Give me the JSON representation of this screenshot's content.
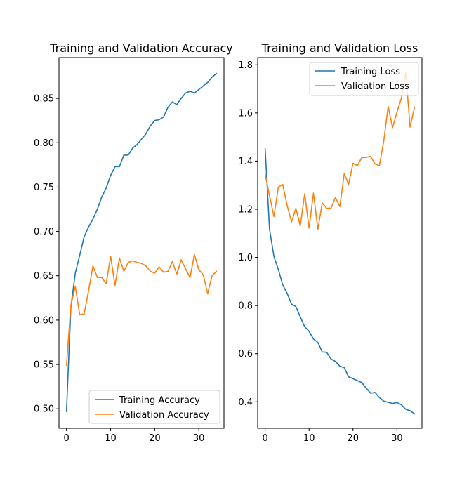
{
  "colors": {
    "training": "#1f77b4",
    "validation": "#ff7f0e"
  },
  "chart_data": [
    {
      "type": "line",
      "title": "Training and Validation Accuracy",
      "xlabel": "",
      "ylabel": "",
      "xlim": [
        -1.7,
        35.7
      ],
      "ylim": [
        0.478,
        0.896
      ],
      "xticks": [
        0,
        10,
        20,
        30
      ],
      "xtick_labels": [
        "0",
        "10",
        "20",
        "30"
      ],
      "yticks": [
        0.5,
        0.55,
        0.6,
        0.65,
        0.7,
        0.75,
        0.8,
        0.85
      ],
      "ytick_labels": [
        "0.50",
        "0.55",
        "0.60",
        "0.65",
        "0.70",
        "0.75",
        "0.80",
        "0.85"
      ],
      "grid": false,
      "legend_position": "bottom-right",
      "x": [
        0,
        1,
        2,
        3,
        4,
        5,
        6,
        7,
        8,
        9,
        10,
        11,
        12,
        13,
        14,
        15,
        16,
        17,
        18,
        19,
        20,
        21,
        22,
        23,
        24,
        25,
        26,
        27,
        28,
        29,
        30,
        31,
        32,
        33,
        34
      ],
      "series": [
        {
          "name": "Training Accuracy",
          "color_key": "training",
          "values": [
            0.497,
            0.615,
            0.653,
            0.673,
            0.694,
            0.705,
            0.714,
            0.725,
            0.739,
            0.749,
            0.763,
            0.773,
            0.773,
            0.786,
            0.786,
            0.794,
            0.798,
            0.804,
            0.81,
            0.819,
            0.825,
            0.826,
            0.829,
            0.84,
            0.846,
            0.843,
            0.85,
            0.856,
            0.858,
            0.856,
            0.86,
            0.864,
            0.868,
            0.874,
            0.878
          ]
        },
        {
          "name": "Validation Accuracy",
          "color_key": "validation",
          "values": [
            0.549,
            0.617,
            0.638,
            0.606,
            0.607,
            0.633,
            0.661,
            0.648,
            0.648,
            0.641,
            0.672,
            0.639,
            0.67,
            0.655,
            0.665,
            0.667,
            0.665,
            0.664,
            0.661,
            0.655,
            0.653,
            0.66,
            0.654,
            0.655,
            0.666,
            0.652,
            0.668,
            0.658,
            0.648,
            0.674,
            0.657,
            0.651,
            0.63,
            0.65,
            0.655
          ]
        }
      ]
    },
    {
      "type": "line",
      "title": "Training and Validation Loss",
      "xlabel": "",
      "ylabel": "",
      "xlim": [
        -1.7,
        35.7
      ],
      "ylim": [
        0.29,
        1.83
      ],
      "xticks": [
        0,
        10,
        20,
        30
      ],
      "xtick_labels": [
        "0",
        "10",
        "20",
        "30"
      ],
      "yticks": [
        0.4,
        0.6,
        0.8,
        1.0,
        1.2,
        1.4,
        1.6,
        1.8
      ],
      "ytick_labels": [
        "0.4",
        "0.6",
        "0.8",
        "1.0",
        "1.2",
        "1.4",
        "1.6",
        "1.8"
      ],
      "grid": false,
      "legend_position": "top-right",
      "x": [
        0,
        1,
        2,
        3,
        4,
        5,
        6,
        7,
        8,
        9,
        10,
        11,
        12,
        13,
        14,
        15,
        16,
        17,
        18,
        19,
        20,
        21,
        22,
        23,
        24,
        25,
        26,
        27,
        28,
        29,
        30,
        31,
        32,
        33,
        34
      ],
      "series": [
        {
          "name": "Training Loss",
          "color_key": "training",
          "values": [
            1.451,
            1.117,
            1.004,
            0.95,
            0.886,
            0.851,
            0.806,
            0.796,
            0.753,
            0.712,
            0.693,
            0.661,
            0.647,
            0.607,
            0.606,
            0.578,
            0.568,
            0.548,
            0.542,
            0.504,
            0.496,
            0.488,
            0.48,
            0.457,
            0.436,
            0.439,
            0.418,
            0.403,
            0.398,
            0.393,
            0.397,
            0.388,
            0.369,
            0.363,
            0.35
          ]
        },
        {
          "name": "Validation Loss",
          "color_key": "validation",
          "values": [
            1.345,
            1.256,
            1.17,
            1.292,
            1.303,
            1.217,
            1.147,
            1.204,
            1.131,
            1.264,
            1.122,
            1.267,
            1.117,
            1.226,
            1.204,
            1.205,
            1.249,
            1.211,
            1.347,
            1.304,
            1.391,
            1.381,
            1.415,
            1.415,
            1.42,
            1.388,
            1.381,
            1.483,
            1.627,
            1.539,
            1.603,
            1.661,
            1.766,
            1.541,
            1.624
          ]
        }
      ]
    }
  ]
}
